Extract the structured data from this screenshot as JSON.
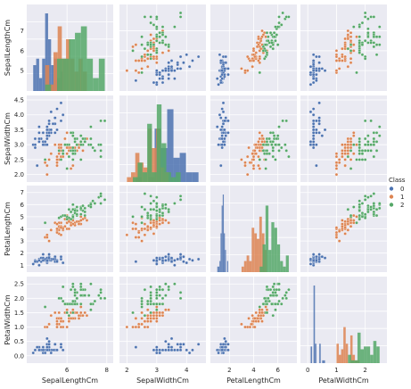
{
  "chart_data": {
    "type": "scatter",
    "kind": "pairplot",
    "features": [
      "SepalLengthCm",
      "SepalWidthCm",
      "PetalLengthCm",
      "PetalWidthCm"
    ],
    "hue": "Class",
    "classes": [
      "0",
      "1",
      "2"
    ],
    "colors": {
      "0": "#4c72b0",
      "1": "#dd8452",
      "2": "#55a868"
    },
    "legend": {
      "title": "Class",
      "placement": "right"
    },
    "grid": true,
    "background": "#eaeaf2",
    "axes": [
      {
        "name": "SepalLengthCm",
        "lim": [
          4.2,
          8.1
        ],
        "ticks": [
          6,
          8
        ]
      },
      {
        "name": "SepalWidthCm",
        "lim": [
          1.9,
          4.5
        ],
        "ticks": [
          2,
          3,
          4
        ],
        "y_ticks": [
          "2.0",
          "2.5",
          "3.0",
          "3.5",
          "4.0",
          "4.5"
        ]
      },
      {
        "name": "PetalLengthCm",
        "lim": [
          0.8,
          7.2
        ],
        "ticks": [
          2,
          4,
          6
        ]
      },
      {
        "name": "PetalWidthCm",
        "lim": [
          -0.1,
          2.6
        ],
        "ticks": [
          0,
          1,
          2
        ],
        "y_ticks": [
          "0.0",
          "0.5",
          "1.0",
          "1.5",
          "2.0",
          "2.5"
        ]
      }
    ],
    "y_tick_labels": [
      [
        "5",
        "6",
        "7"
      ],
      [
        "2.0",
        "2.5",
        "3.0",
        "3.5",
        "4.0",
        "4.5"
      ],
      [
        "1",
        "2",
        "3",
        "4",
        "5",
        "6",
        "7"
      ],
      [
        "0.0",
        "0.5",
        "1.0",
        "1.5",
        "2.0",
        "2.5"
      ]
    ],
    "x_tick_labels": [
      [
        "6",
        "8"
      ],
      [
        "2",
        "3",
        "4"
      ],
      [
        "2",
        "4",
        "6"
      ],
      [
        "0",
        "1",
        "2"
      ]
    ],
    "data": {
      "0": [
        [
          5.1,
          3.5,
          1.4,
          0.2
        ],
        [
          4.9,
          3.0,
          1.4,
          0.2
        ],
        [
          4.7,
          3.2,
          1.3,
          0.2
        ],
        [
          4.6,
          3.1,
          1.5,
          0.2
        ],
        [
          5.0,
          3.6,
          1.4,
          0.2
        ],
        [
          5.4,
          3.9,
          1.7,
          0.4
        ],
        [
          4.6,
          3.4,
          1.4,
          0.3
        ],
        [
          5.0,
          3.4,
          1.5,
          0.2
        ],
        [
          4.4,
          2.9,
          1.4,
          0.2
        ],
        [
          4.9,
          3.1,
          1.5,
          0.1
        ],
        [
          5.4,
          3.7,
          1.5,
          0.2
        ],
        [
          4.8,
          3.4,
          1.6,
          0.2
        ],
        [
          4.8,
          3.0,
          1.4,
          0.1
        ],
        [
          4.3,
          3.0,
          1.1,
          0.1
        ],
        [
          5.8,
          4.0,
          1.2,
          0.2
        ],
        [
          5.7,
          4.4,
          1.5,
          0.4
        ],
        [
          5.4,
          3.9,
          1.3,
          0.4
        ],
        [
          5.1,
          3.5,
          1.4,
          0.3
        ],
        [
          5.7,
          3.8,
          1.7,
          0.3
        ],
        [
          5.1,
          3.8,
          1.5,
          0.3
        ],
        [
          5.4,
          3.4,
          1.7,
          0.2
        ],
        [
          5.1,
          3.7,
          1.5,
          0.4
        ],
        [
          4.6,
          3.6,
          1.0,
          0.2
        ],
        [
          5.1,
          3.3,
          1.7,
          0.5
        ],
        [
          4.8,
          3.4,
          1.9,
          0.2
        ],
        [
          5.0,
          3.0,
          1.6,
          0.2
        ],
        [
          5.0,
          3.4,
          1.6,
          0.4
        ],
        [
          5.2,
          3.5,
          1.5,
          0.2
        ],
        [
          5.2,
          3.4,
          1.4,
          0.2
        ],
        [
          4.7,
          3.2,
          1.6,
          0.2
        ],
        [
          4.8,
          3.1,
          1.6,
          0.2
        ],
        [
          5.4,
          3.4,
          1.5,
          0.4
        ],
        [
          5.2,
          4.1,
          1.5,
          0.1
        ],
        [
          5.5,
          4.2,
          1.4,
          0.2
        ],
        [
          4.9,
          3.1,
          1.5,
          0.1
        ],
        [
          5.0,
          3.2,
          1.2,
          0.2
        ],
        [
          5.5,
          3.5,
          1.3,
          0.2
        ],
        [
          4.9,
          3.1,
          1.5,
          0.1
        ],
        [
          4.4,
          3.0,
          1.3,
          0.2
        ],
        [
          5.1,
          3.4,
          1.5,
          0.2
        ],
        [
          5.0,
          3.5,
          1.3,
          0.3
        ],
        [
          4.5,
          2.3,
          1.3,
          0.3
        ],
        [
          4.4,
          3.2,
          1.3,
          0.2
        ],
        [
          5.0,
          3.5,
          1.6,
          0.6
        ],
        [
          5.1,
          3.8,
          1.9,
          0.4
        ],
        [
          4.8,
          3.0,
          1.4,
          0.3
        ],
        [
          5.1,
          3.8,
          1.6,
          0.2
        ],
        [
          4.6,
          3.2,
          1.4,
          0.2
        ],
        [
          5.3,
          3.7,
          1.5,
          0.2
        ],
        [
          5.0,
          3.3,
          1.4,
          0.2
        ]
      ],
      "1": [
        [
          7.0,
          3.2,
          4.7,
          1.4
        ],
        [
          6.4,
          3.2,
          4.5,
          1.5
        ],
        [
          6.9,
          3.1,
          4.9,
          1.5
        ],
        [
          5.5,
          2.3,
          4.0,
          1.3
        ],
        [
          6.5,
          2.8,
          4.6,
          1.5
        ],
        [
          5.7,
          2.8,
          4.5,
          1.3
        ],
        [
          6.3,
          3.3,
          4.7,
          1.6
        ],
        [
          4.9,
          2.4,
          3.3,
          1.0
        ],
        [
          6.6,
          2.9,
          4.6,
          1.3
        ],
        [
          5.2,
          2.7,
          3.9,
          1.4
        ],
        [
          5.0,
          2.0,
          3.5,
          1.0
        ],
        [
          5.9,
          3.0,
          4.2,
          1.5
        ],
        [
          6.0,
          2.2,
          4.0,
          1.0
        ],
        [
          6.1,
          2.9,
          4.7,
          1.4
        ],
        [
          5.6,
          2.9,
          3.6,
          1.3
        ],
        [
          6.7,
          3.1,
          4.4,
          1.4
        ],
        [
          5.6,
          3.0,
          4.5,
          1.5
        ],
        [
          5.8,
          2.7,
          4.1,
          1.0
        ],
        [
          6.2,
          2.2,
          4.5,
          1.5
        ],
        [
          5.6,
          2.5,
          3.9,
          1.1
        ],
        [
          5.9,
          3.2,
          4.8,
          1.8
        ],
        [
          6.1,
          2.8,
          4.0,
          1.3
        ],
        [
          6.3,
          2.5,
          4.9,
          1.5
        ],
        [
          6.1,
          2.8,
          4.7,
          1.2
        ],
        [
          6.4,
          2.9,
          4.3,
          1.3
        ],
        [
          6.6,
          3.0,
          4.4,
          1.4
        ],
        [
          6.8,
          2.8,
          4.8,
          1.4
        ],
        [
          6.7,
          3.0,
          5.0,
          1.7
        ],
        [
          6.0,
          2.9,
          4.5,
          1.5
        ],
        [
          5.7,
          2.6,
          3.5,
          1.0
        ],
        [
          5.5,
          2.4,
          3.8,
          1.1
        ],
        [
          5.5,
          2.4,
          3.7,
          1.0
        ],
        [
          5.8,
          2.7,
          3.9,
          1.2
        ],
        [
          6.0,
          2.7,
          5.1,
          1.6
        ],
        [
          5.4,
          3.0,
          4.5,
          1.5
        ],
        [
          6.0,
          3.4,
          4.5,
          1.6
        ],
        [
          6.7,
          3.1,
          4.7,
          1.5
        ],
        [
          6.3,
          2.3,
          4.4,
          1.3
        ],
        [
          5.6,
          3.0,
          4.1,
          1.3
        ],
        [
          5.5,
          2.5,
          4.0,
          1.3
        ],
        [
          5.5,
          2.6,
          4.4,
          1.2
        ],
        [
          6.1,
          3.0,
          4.6,
          1.4
        ],
        [
          5.8,
          2.6,
          4.0,
          1.2
        ],
        [
          5.0,
          2.3,
          3.3,
          1.0
        ],
        [
          5.6,
          2.7,
          4.2,
          1.3
        ],
        [
          5.7,
          3.0,
          4.2,
          1.2
        ],
        [
          5.7,
          2.9,
          4.2,
          1.3
        ],
        [
          6.2,
          2.9,
          4.3,
          1.3
        ],
        [
          5.1,
          2.5,
          3.0,
          1.1
        ],
        [
          5.7,
          2.8,
          4.1,
          1.3
        ]
      ],
      "2": [
        [
          6.3,
          3.3,
          6.0,
          2.5
        ],
        [
          5.8,
          2.7,
          5.1,
          1.9
        ],
        [
          7.1,
          3.0,
          5.9,
          2.1
        ],
        [
          6.3,
          2.9,
          5.6,
          1.8
        ],
        [
          6.5,
          3.0,
          5.8,
          2.2
        ],
        [
          7.6,
          3.0,
          6.6,
          2.1
        ],
        [
          4.9,
          2.5,
          4.5,
          1.7
        ],
        [
          7.3,
          2.9,
          6.3,
          1.8
        ],
        [
          6.7,
          2.5,
          5.8,
          1.8
        ],
        [
          7.2,
          3.6,
          6.1,
          2.5
        ],
        [
          6.5,
          3.2,
          5.1,
          2.0
        ],
        [
          6.4,
          2.7,
          5.3,
          1.9
        ],
        [
          6.8,
          3.0,
          5.5,
          2.1
        ],
        [
          5.7,
          2.5,
          5.0,
          2.0
        ],
        [
          5.8,
          2.8,
          5.1,
          2.4
        ],
        [
          6.4,
          3.2,
          5.3,
          2.3
        ],
        [
          6.5,
          3.0,
          5.5,
          1.8
        ],
        [
          7.7,
          3.8,
          6.7,
          2.2
        ],
        [
          7.7,
          2.6,
          6.9,
          2.3
        ],
        [
          6.0,
          2.2,
          5.0,
          1.5
        ],
        [
          6.9,
          3.2,
          5.7,
          2.3
        ],
        [
          5.6,
          2.8,
          4.9,
          2.0
        ],
        [
          7.7,
          2.8,
          6.7,
          2.0
        ],
        [
          6.3,
          2.7,
          4.9,
          1.8
        ],
        [
          6.7,
          3.3,
          5.7,
          2.1
        ],
        [
          7.2,
          3.2,
          6.0,
          1.8
        ],
        [
          6.2,
          2.8,
          4.8,
          1.8
        ],
        [
          6.1,
          3.0,
          4.9,
          1.8
        ],
        [
          6.4,
          2.8,
          5.6,
          2.1
        ],
        [
          7.2,
          3.0,
          5.8,
          1.6
        ],
        [
          7.4,
          2.8,
          6.1,
          1.9
        ],
        [
          7.9,
          3.8,
          6.4,
          2.0
        ],
        [
          6.4,
          2.8,
          5.6,
          2.2
        ],
        [
          6.3,
          2.8,
          5.1,
          1.5
        ],
        [
          6.1,
          2.6,
          5.6,
          1.4
        ],
        [
          7.7,
          3.0,
          6.1,
          2.3
        ],
        [
          6.3,
          3.4,
          5.6,
          2.4
        ],
        [
          6.4,
          3.1,
          5.5,
          1.8
        ],
        [
          6.0,
          3.0,
          4.8,
          1.8
        ],
        [
          6.9,
          3.1,
          5.4,
          2.1
        ],
        [
          6.7,
          3.1,
          5.6,
          2.4
        ],
        [
          6.9,
          3.1,
          5.1,
          2.3
        ],
        [
          5.8,
          2.7,
          5.1,
          1.9
        ],
        [
          6.8,
          3.2,
          5.9,
          2.3
        ],
        [
          6.7,
          3.3,
          5.7,
          2.5
        ],
        [
          6.7,
          3.0,
          5.2,
          2.3
        ],
        [
          6.3,
          2.5,
          5.0,
          1.9
        ],
        [
          6.5,
          3.0,
          5.2,
          2.0
        ],
        [
          6.2,
          3.4,
          5.4,
          2.3
        ],
        [
          5.9,
          3.0,
          5.1,
          1.8
        ]
      ]
    }
  }
}
